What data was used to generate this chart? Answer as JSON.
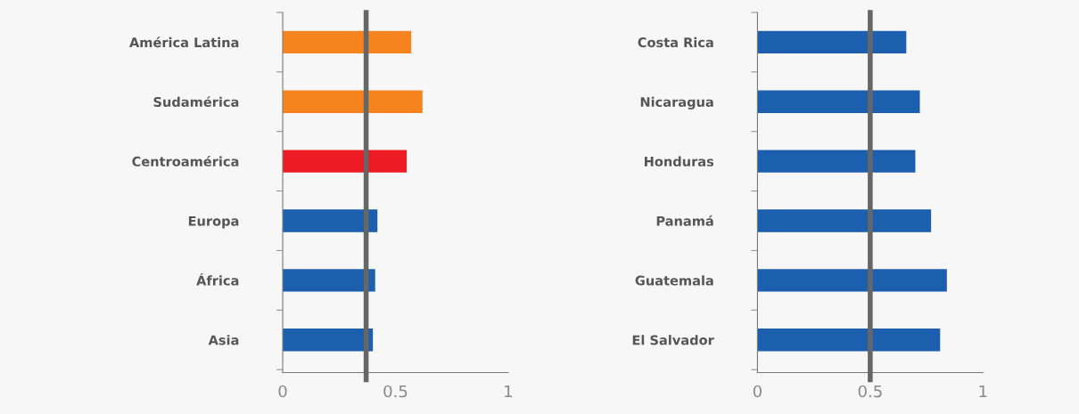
{
  "chart_data": [
    {
      "type": "bar",
      "orientation": "horizontal",
      "categories": [
        "América Latina",
        "Sudamérica",
        "Centroamérica",
        "Europa",
        "África",
        "Asia"
      ],
      "values": [
        0.57,
        0.62,
        0.55,
        0.42,
        0.41,
        0.4
      ],
      "colors": [
        "#f5841f",
        "#f5841f",
        "#ed1c24",
        "#1b5fae",
        "#1b5fae",
        "#1b5fae"
      ],
      "xlim": [
        0,
        1
      ],
      "xticks": [
        0,
        0.5,
        1
      ],
      "grid": false,
      "legend": false,
      "ref_lines": [
        {
          "axis": "x",
          "value": 0.37,
          "color": "#666666"
        }
      ]
    },
    {
      "type": "bar",
      "orientation": "horizontal",
      "categories": [
        "Costa Rica",
        "Nicaragua",
        "Honduras",
        "Panamá",
        "Guatemala",
        "El Salvador"
      ],
      "values": [
        0.66,
        0.72,
        0.7,
        0.77,
        0.84,
        0.81
      ],
      "colors": [
        "#1b5fae",
        "#1b5fae",
        "#1b5fae",
        "#1b5fae",
        "#1b5fae",
        "#1b5fae"
      ],
      "xlim": [
        0,
        1
      ],
      "xticks": [
        0,
        0.5,
        1
      ],
      "grid": false,
      "legend": false,
      "ref_lines": [
        {
          "axis": "x",
          "value": 0.5,
          "color": "#666666"
        }
      ]
    }
  ]
}
